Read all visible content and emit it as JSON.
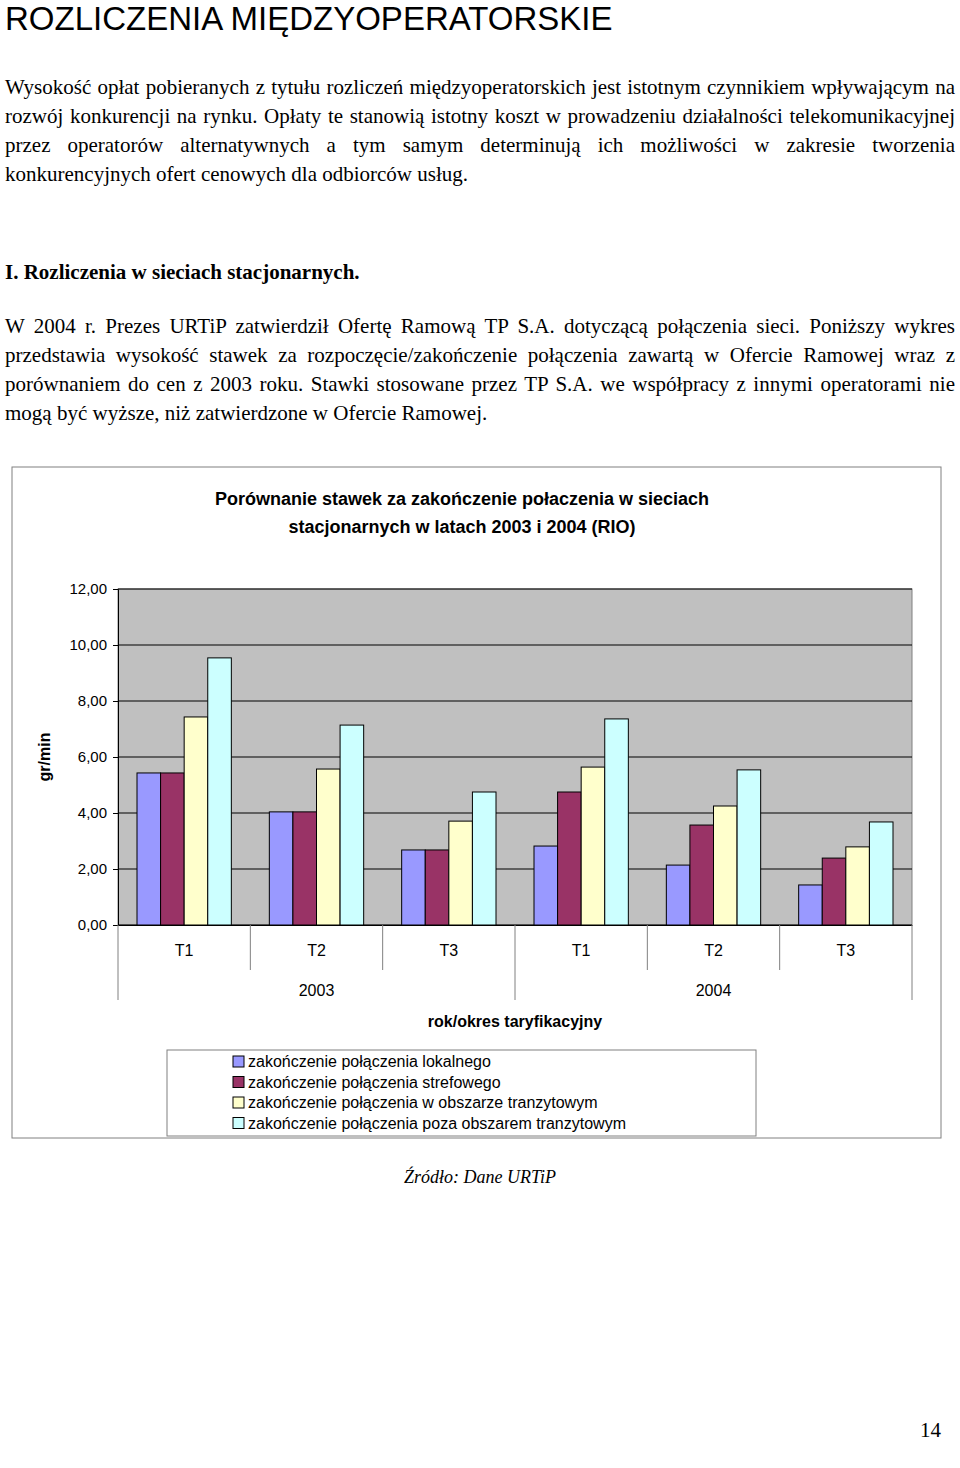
{
  "document": {
    "heading": "ROZLICZENIA MIĘDZYOPERATORSKIE",
    "paragraphs": [
      "Wysokość opłat pobieranych z tytułu rozliczeń międzyoperatorskich jest istotnym czynnikiem wpływającym na rozwój konkurencji  na rynku. Opłaty te stanowią istotny koszt w prowadzeniu działalności telekomunikacyjnej przez operatorów alternatywnych a tym samym determinują ich możliwości w zakresie tworzenia konkurencyjnych ofert cenowych dla odbiorców usług."
    ],
    "section_heading": "I. Rozliczenia w sieciach stacjonarnych.",
    "section_paragraphs": [
      "W 2004 r. Prezes URTiP zatwierdził Ofertę Ramową TP S.A. dotyczącą połączenia sieci. Poniższy wykres przedstawia wysokość stawek za rozpoczęcie/zakończenie połączenia zawartą w Ofercie Ramowej wraz z porównaniem do cen z 2003 roku. Stawki stosowane przez TP S.A. we współpracy z innymi operatorami nie mogą być wyższe, niż zatwierdzone w Ofercie Ramowej."
    ],
    "source": "Źródło: Dane URTiP",
    "page_number": "14"
  },
  "chart_data": {
    "type": "bar",
    "title": "Porównanie stawek za zakończenie połaczenia w sieciach stacjonarnych w latach 2003 i 2004 (RIO)",
    "x_label": "rok/okres taryfikacyjny",
    "y_label": "gr/min",
    "categories": [
      "T1",
      "T2",
      "T3",
      "T1",
      "T2",
      "T3"
    ],
    "x_groups": [
      "2003",
      "2004"
    ],
    "series": [
      {
        "name": "zakończenie połączenia lokalnego",
        "color": "#9999ff",
        "values": [
          5.43,
          4.04,
          2.68,
          2.82,
          2.14,
          1.43
        ]
      },
      {
        "name": "zakończenie połączenia strefowego",
        "color": "#993366",
        "values": [
          5.43,
          4.04,
          2.68,
          4.75,
          3.57,
          2.39
        ]
      },
      {
        "name": "zakończenie połączenia w obszarze tranzytowym",
        "color": "#ffffcc",
        "values": [
          7.43,
          5.57,
          3.71,
          5.64,
          4.25,
          2.79
        ]
      },
      {
        "name": "zakończenie połączenia poza obszarem tranzytowym",
        "color": "#ccffff",
        "values": [
          9.54,
          7.14,
          4.75,
          7.36,
          5.54,
          3.68
        ]
      }
    ],
    "ylim": [
      0,
      12
    ],
    "yticks": [
      {
        "value": 0,
        "label": "0,00"
      },
      {
        "value": 2,
        "label": "2,00"
      },
      {
        "value": 4,
        "label": "4,00"
      },
      {
        "value": 6,
        "label": "6,00"
      },
      {
        "value": 8,
        "label": "8,00"
      },
      {
        "value": 10,
        "label": "10,00"
      },
      {
        "value": 12,
        "label": "12,00"
      }
    ],
    "grid": true,
    "legend": "bottom"
  }
}
